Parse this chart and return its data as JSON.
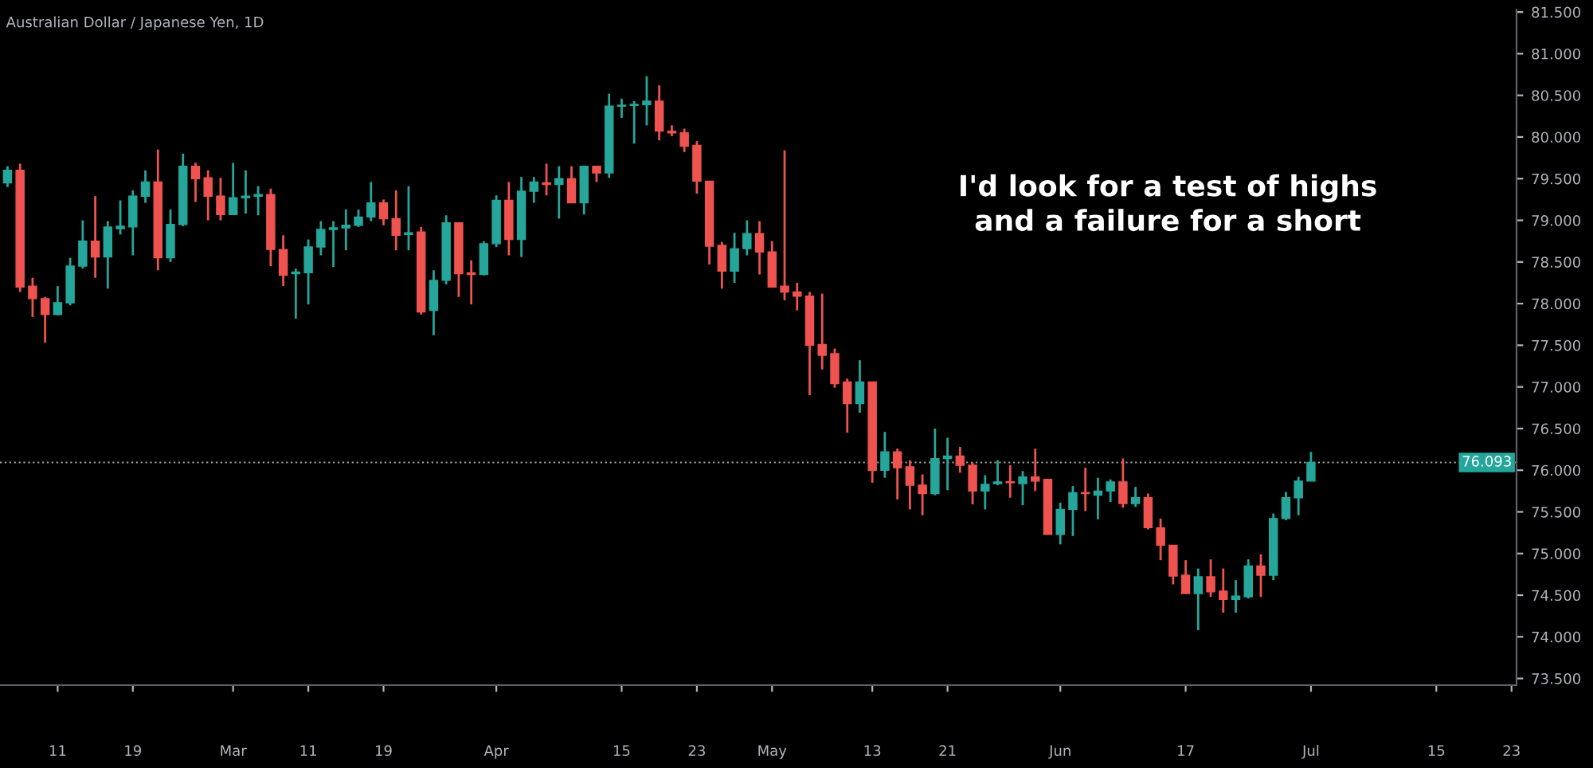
{
  "chart_data": {
    "type": "candlestick",
    "title": "Australian Dollar / Japanese Yen, 1D",
    "annotations": [
      "I'd look for a test of highs\nand a failure for a short"
    ],
    "categories": [
      null,
      null,
      null,
      null,
      "11",
      null,
      null,
      null,
      null,
      null,
      "19",
      null,
      null,
      null,
      null,
      null,
      null,
      null,
      "Mar",
      null,
      null,
      null,
      null,
      null,
      "11",
      null,
      null,
      null,
      null,
      null,
      "19",
      null,
      null,
      null,
      null,
      null,
      null,
      null,
      null,
      "Apr",
      null,
      null,
      null,
      null,
      null,
      null,
      null,
      null,
      null,
      "15",
      null,
      null,
      null,
      null,
      null,
      "23",
      null,
      null,
      null,
      null,
      null,
      "May",
      null,
      null,
      null,
      null,
      null,
      null,
      null,
      "13",
      null,
      null,
      null,
      null,
      null,
      "21",
      null,
      null,
      null,
      null,
      null,
      null,
      null,
      null,
      "Jun",
      null,
      null,
      null,
      null,
      null,
      null,
      null,
      null,
      null,
      "17",
      null,
      null,
      null,
      null,
      null,
      null,
      null,
      null,
      null,
      "Jul",
      null,
      null,
      null,
      null,
      null,
      null,
      null,
      null,
      null,
      "15",
      null,
      null,
      null,
      null,
      null,
      "23"
    ],
    "ohlc": [
      [
        79.45,
        79.65,
        79.4,
        79.6
      ],
      [
        79.6,
        79.68,
        78.14,
        78.2
      ],
      [
        78.21,
        78.31,
        77.84,
        78.06
      ],
      [
        78.06,
        78.08,
        77.53,
        77.87
      ],
      [
        77.87,
        78.21,
        77.86,
        78.01
      ],
      [
        78.01,
        78.55,
        77.98,
        78.45
      ],
      [
        78.45,
        79.0,
        78.42,
        78.75
      ],
      [
        78.75,
        79.29,
        78.31,
        78.56
      ],
      [
        78.56,
        78.99,
        78.18,
        78.92
      ],
      [
        78.9,
        79.24,
        78.83,
        78.93
      ],
      [
        78.92,
        79.36,
        78.58,
        79.29
      ],
      [
        79.29,
        79.6,
        79.21,
        79.46
      ],
      [
        79.46,
        79.85,
        78.4,
        78.55
      ],
      [
        78.55,
        79.13,
        78.5,
        78.95
      ],
      [
        78.95,
        79.8,
        78.93,
        79.65
      ],
      [
        79.65,
        79.69,
        79.22,
        79.5
      ],
      [
        79.51,
        79.6,
        79.0,
        79.29
      ],
      [
        79.29,
        79.51,
        79.0,
        79.07
      ],
      [
        79.07,
        79.69,
        79.07,
        79.27
      ],
      [
        79.27,
        79.6,
        79.08,
        79.29
      ],
      [
        79.29,
        79.41,
        79.06,
        79.31
      ],
      [
        79.31,
        79.38,
        78.45,
        78.65
      ],
      [
        78.65,
        78.82,
        78.21,
        78.34
      ],
      [
        78.36,
        78.42,
        77.82,
        78.38
      ],
      [
        78.37,
        78.77,
        77.99,
        78.68
      ],
      [
        78.68,
        78.99,
        78.58,
        78.89
      ],
      [
        78.89,
        78.99,
        78.44,
        78.91
      ],
      [
        78.91,
        79.13,
        78.64,
        78.94
      ],
      [
        78.94,
        79.13,
        78.92,
        79.04
      ],
      [
        79.04,
        79.46,
        78.99,
        79.21
      ],
      [
        79.21,
        79.25,
        78.94,
        79.02
      ],
      [
        79.02,
        79.36,
        78.64,
        78.82
      ],
      [
        78.83,
        79.41,
        78.64,
        78.85
      ],
      [
        78.86,
        78.92,
        77.87,
        77.9
      ],
      [
        77.92,
        78.4,
        77.62,
        78.28
      ],
      [
        78.28,
        79.06,
        78.23,
        78.97
      ],
      [
        78.97,
        78.97,
        78.08,
        78.36
      ],
      [
        78.37,
        78.52,
        77.99,
        78.35
      ],
      [
        78.35,
        78.75,
        78.34,
        78.72
      ],
      [
        78.72,
        79.3,
        78.68,
        79.24
      ],
      [
        79.24,
        79.46,
        78.58,
        78.77
      ],
      [
        78.77,
        79.52,
        78.56,
        79.35
      ],
      [
        79.35,
        79.52,
        79.21,
        79.46
      ],
      [
        79.45,
        79.68,
        79.3,
        79.43
      ],
      [
        79.43,
        79.65,
        79.02,
        79.5
      ],
      [
        79.5,
        79.65,
        79.21,
        79.21
      ],
      [
        79.21,
        79.65,
        79.07,
        79.65
      ],
      [
        79.65,
        79.65,
        79.46,
        79.57
      ],
      [
        79.57,
        80.52,
        79.51,
        80.37
      ],
      [
        80.37,
        80.46,
        80.23,
        80.38
      ],
      [
        80.38,
        80.43,
        79.92,
        80.39
      ],
      [
        80.39,
        80.73,
        80.14,
        80.43
      ],
      [
        80.43,
        80.62,
        79.96,
        80.07
      ],
      [
        80.07,
        80.14,
        80.01,
        80.05
      ],
      [
        80.05,
        80.1,
        79.82,
        79.89
      ],
      [
        79.9,
        79.95,
        79.32,
        79.47
      ],
      [
        79.47,
        79.47,
        78.47,
        78.69
      ],
      [
        78.7,
        78.74,
        78.18,
        78.39
      ],
      [
        78.39,
        78.85,
        78.25,
        78.66
      ],
      [
        78.66,
        79.0,
        78.58,
        78.84
      ],
      [
        78.84,
        78.99,
        78.35,
        78.62
      ],
      [
        78.62,
        78.75,
        78.2,
        78.2
      ],
      [
        78.21,
        79.84,
        78.04,
        78.14
      ],
      [
        78.14,
        78.25,
        77.92,
        78.09
      ],
      [
        78.09,
        78.14,
        76.9,
        77.5
      ],
      [
        77.51,
        78.12,
        77.21,
        77.38
      ],
      [
        77.4,
        77.46,
        76.99,
        77.04
      ],
      [
        77.06,
        77.1,
        76.45,
        76.8
      ],
      [
        76.8,
        77.32,
        76.69,
        77.06
      ],
      [
        77.06,
        77.06,
        75.85,
        76.0
      ],
      [
        76.0,
        76.46,
        75.91,
        76.22
      ],
      [
        76.22,
        76.26,
        75.65,
        76.03
      ],
      [
        76.04,
        76.12,
        75.53,
        75.82
      ],
      [
        75.82,
        75.95,
        75.46,
        75.72
      ],
      [
        75.72,
        76.5,
        75.7,
        76.14
      ],
      [
        76.14,
        76.39,
        75.76,
        76.17
      ],
      [
        76.17,
        76.28,
        75.97,
        76.06
      ],
      [
        76.06,
        76.09,
        75.59,
        75.75
      ],
      [
        75.75,
        75.94,
        75.53,
        75.83
      ],
      [
        75.84,
        76.12,
        75.82,
        75.86
      ],
      [
        75.86,
        76.06,
        75.67,
        75.85
      ],
      [
        75.84,
        75.99,
        75.58,
        75.92
      ],
      [
        75.92,
        76.26,
        75.75,
        75.87
      ],
      [
        75.89,
        75.89,
        75.23,
        75.23
      ],
      [
        75.23,
        75.61,
        75.11,
        75.53
      ],
      [
        75.53,
        75.81,
        75.21,
        75.73
      ],
      [
        75.73,
        76.03,
        75.51,
        75.72
      ],
      [
        75.7,
        75.91,
        75.41,
        75.75
      ],
      [
        75.75,
        75.89,
        75.62,
        75.86
      ],
      [
        75.86,
        76.14,
        75.55,
        75.6
      ],
      [
        75.6,
        75.8,
        75.56,
        75.67
      ],
      [
        75.67,
        75.72,
        75.29,
        75.31
      ],
      [
        75.31,
        75.42,
        74.92,
        75.1
      ],
      [
        75.1,
        75.1,
        74.63,
        74.73
      ],
      [
        74.74,
        74.92,
        74.52,
        74.52
      ],
      [
        74.52,
        74.82,
        74.08,
        74.72
      ],
      [
        74.72,
        74.93,
        74.48,
        74.54
      ],
      [
        74.55,
        74.82,
        74.29,
        74.45
      ],
      [
        74.45,
        74.68,
        74.29,
        74.49
      ],
      [
        74.48,
        74.93,
        74.46,
        74.85
      ],
      [
        74.85,
        74.99,
        74.48,
        74.74
      ],
      [
        74.74,
        75.48,
        74.68,
        75.42
      ],
      [
        75.42,
        75.74,
        75.4,
        75.67
      ],
      [
        75.67,
        75.92,
        75.46,
        75.87
      ],
      [
        75.87,
        76.22,
        75.87,
        76.093
      ],
      null,
      null,
      null,
      null,
      null,
      null,
      null,
      null,
      null,
      null,
      null,
      null,
      null,
      null,
      null,
      null
    ],
    "colors": [
      "#26a69a",
      "#ef5350",
      "#ef5350",
      "#ef5350",
      "#26a69a",
      "#26a69a",
      "#26a69a",
      "#ef5350",
      "#26a69a",
      "#26a69a",
      "#26a69a",
      "#26a69a",
      "#ef5350",
      "#26a69a",
      "#26a69a",
      "#ef5350",
      "#ef5350",
      "#ef5350",
      "#26a69a",
      "#26a69a",
      "#26a69a",
      "#ef5350",
      "#ef5350",
      "#26a69a",
      "#26a69a",
      "#26a69a",
      "#26a69a",
      "#26a69a",
      "#26a69a",
      "#26a69a",
      "#ef5350",
      "#ef5350",
      "#26a69a",
      "#ef5350",
      "#26a69a",
      "#26a69a",
      "#ef5350",
      "#ef5350",
      "#26a69a",
      "#26a69a",
      "#ef5350",
      "#26a69a",
      "#26a69a",
      "#ef5350",
      "#26a69a",
      "#ef5350",
      "#26a69a",
      "#ef5350",
      "#26a69a",
      "#26a69a",
      "#26a69a",
      "#26a69a",
      "#ef5350",
      "#ef5350",
      "#ef5350",
      "#ef5350",
      "#ef5350",
      "#ef5350",
      "#26a69a",
      "#26a69a",
      "#ef5350",
      "#ef5350",
      "#ef5350",
      "#ef5350",
      "#ef5350",
      "#ef5350",
      "#ef5350",
      "#ef5350",
      "#26a69a",
      "#ef5350",
      "#26a69a",
      "#ef5350",
      "#ef5350",
      "#ef5350",
      "#26a69a",
      "#26a69a",
      "#ef5350",
      "#ef5350",
      "#26a69a",
      "#26a69a",
      "#ef5350",
      "#26a69a",
      "#ef5350",
      "#ef5350",
      "#26a69a",
      "#26a69a",
      "#ef5350",
      "#26a69a",
      "#26a69a",
      "#ef5350",
      "#26a69a",
      "#ef5350",
      "#ef5350",
      "#ef5350",
      "#ef5350",
      "#26a69a",
      "#ef5350",
      "#ef5350",
      "#26a69a",
      "#26a69a",
      "#ef5350",
      "#26a69a",
      "#26a69a",
      "#26a69a",
      "#26a69a",
      null,
      null,
      null,
      null,
      null,
      null,
      null,
      null,
      null,
      null,
      null,
      null,
      null,
      null,
      null,
      null
    ],
    "ylim": [
      73.42,
      81.53
    ],
    "yticks": [
      {
        "value": 73.5,
        "label": "73.500"
      },
      {
        "value": 74,
        "label": "74.000"
      },
      {
        "value": 74.5,
        "label": "74.500"
      },
      {
        "value": 75,
        "label": "75.000"
      },
      {
        "value": 75.5,
        "label": "75.500"
      },
      {
        "value": 76,
        "label": "76.000"
      },
      {
        "value": 76.5,
        "label": "76.500"
      },
      {
        "value": 77,
        "label": "77.000"
      },
      {
        "value": 77.5,
        "label": "77.500"
      },
      {
        "value": 78,
        "label": "78.000"
      },
      {
        "value": 78.5,
        "label": "78.500"
      },
      {
        "value": 79,
        "label": "79.000"
      },
      {
        "value": 79.5,
        "label": "79.500"
      },
      {
        "value": 80,
        "label": "80.000"
      },
      {
        "value": 80.5,
        "label": "80.500"
      },
      {
        "value": 81,
        "label": "81.000"
      },
      {
        "value": 81.5,
        "label": "81.500"
      }
    ],
    "ref_lines": [
      {
        "axis": "y",
        "value": 76.093,
        "label": "76.093",
        "color": "#9e9e9e",
        "line_style": "dotted"
      }
    ],
    "grid": false,
    "legend": false
  }
}
